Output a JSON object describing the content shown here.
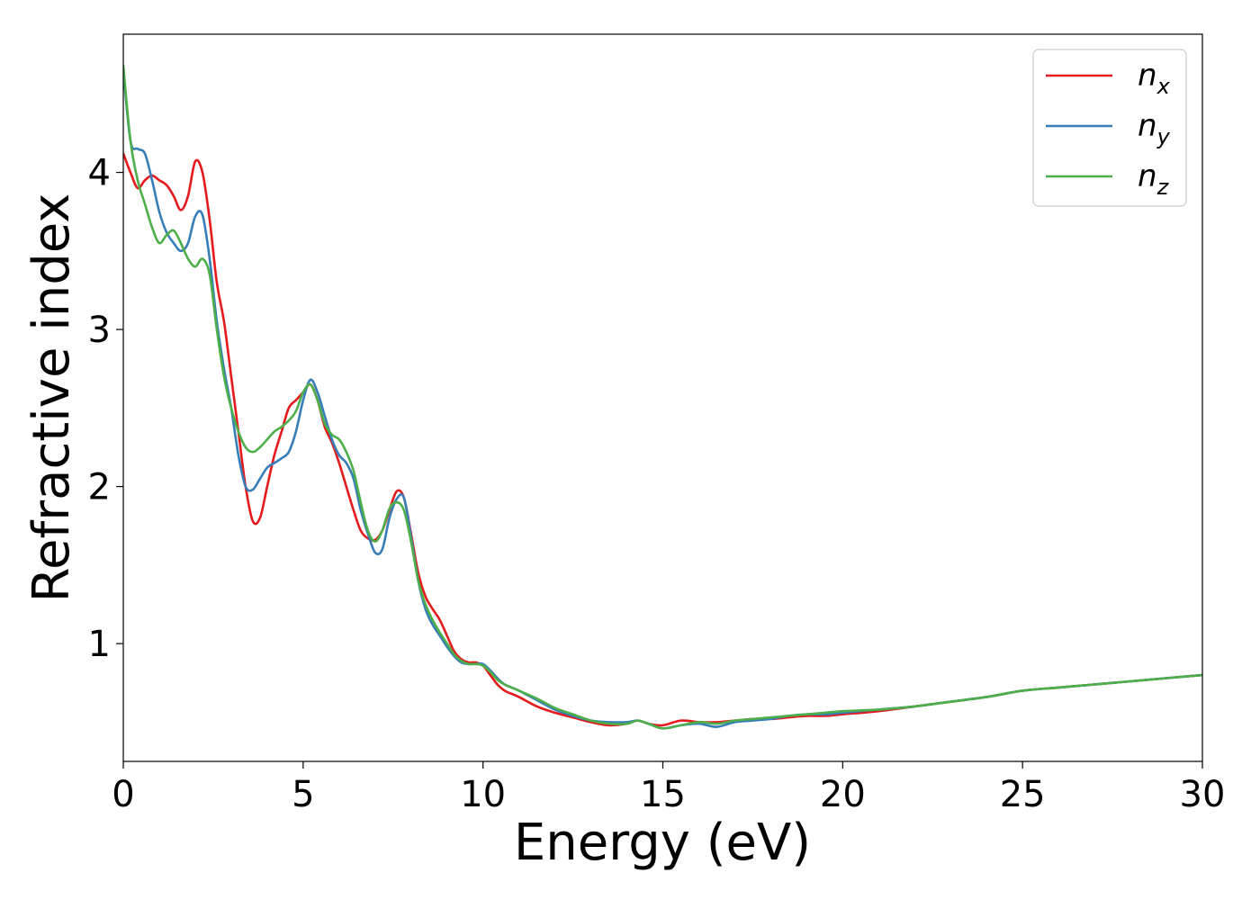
{
  "chart_data": {
    "type": "line",
    "xlabel": "Energy (eV)",
    "ylabel": "Refractive index",
    "xlim": [
      0,
      30
    ],
    "ylim": [
      0.25,
      4.88
    ],
    "xticks": [
      0,
      5,
      10,
      15,
      20,
      25,
      30
    ],
    "xtick_labels": [
      "0",
      "5",
      "10",
      "15",
      "20",
      "25",
      "30"
    ],
    "yticks": [
      1,
      2,
      3,
      4
    ],
    "ytick_labels": [
      "1",
      "2",
      "3",
      "4"
    ],
    "grid": false,
    "legend_position": "top-right",
    "series": [
      {
        "name": "n_x",
        "legend_base": "n",
        "legend_sub": "x",
        "color": "#e41a1c",
        "x": [
          0,
          0.2,
          0.4,
          0.6,
          0.8,
          1.0,
          1.2,
          1.4,
          1.6,
          1.8,
          2.0,
          2.2,
          2.4,
          2.6,
          2.8,
          3.0,
          3.2,
          3.4,
          3.6,
          3.8,
          4.0,
          4.2,
          4.4,
          4.6,
          4.8,
          5.0,
          5.2,
          5.4,
          5.6,
          5.8,
          6.0,
          6.2,
          6.4,
          6.6,
          6.8,
          7.0,
          7.2,
          7.4,
          7.6,
          7.8,
          8.0,
          8.2,
          8.4,
          8.6,
          8.8,
          9.0,
          9.2,
          9.4,
          9.6,
          9.8,
          10.0,
          10.2,
          10.4,
          10.6,
          10.8,
          11.0,
          11.5,
          12.0,
          12.5,
          13.0,
          13.5,
          14.0,
          14.3,
          14.6,
          15.0,
          15.5,
          16.0,
          16.5,
          17.0,
          17.5,
          18.0,
          18.5,
          19.0,
          19.5,
          20.0,
          21.0,
          22.0,
          23.0,
          24.0,
          25.0,
          26.0,
          27.0,
          28.0,
          29.0,
          30.0
        ],
        "y": [
          4.12,
          4.0,
          3.9,
          3.95,
          3.98,
          3.95,
          3.92,
          3.85,
          3.76,
          3.85,
          4.07,
          4.0,
          3.7,
          3.3,
          3.05,
          2.7,
          2.35,
          2.0,
          1.78,
          1.8,
          2.0,
          2.2,
          2.35,
          2.5,
          2.55,
          2.6,
          2.65,
          2.55,
          2.38,
          2.28,
          2.15,
          2.0,
          1.85,
          1.72,
          1.67,
          1.66,
          1.72,
          1.85,
          1.97,
          1.93,
          1.7,
          1.45,
          1.3,
          1.22,
          1.15,
          1.05,
          0.95,
          0.9,
          0.88,
          0.88,
          0.86,
          0.8,
          0.74,
          0.7,
          0.68,
          0.66,
          0.6,
          0.56,
          0.53,
          0.5,
          0.48,
          0.49,
          0.51,
          0.49,
          0.48,
          0.51,
          0.5,
          0.5,
          0.51,
          0.52,
          0.52,
          0.53,
          0.54,
          0.54,
          0.55,
          0.57,
          0.6,
          0.63,
          0.66,
          0.7,
          0.72,
          0.74,
          0.76,
          0.78,
          0.8
        ]
      },
      {
        "name": "n_y",
        "legend_base": "n",
        "legend_sub": "y",
        "color": "#377eb8",
        "x": [
          0,
          0.2,
          0.4,
          0.6,
          0.8,
          1.0,
          1.2,
          1.4,
          1.6,
          1.8,
          2.0,
          2.2,
          2.4,
          2.6,
          2.8,
          3.0,
          3.2,
          3.4,
          3.6,
          3.8,
          4.0,
          4.2,
          4.4,
          4.6,
          4.8,
          5.0,
          5.2,
          5.4,
          5.6,
          5.8,
          6.0,
          6.2,
          6.4,
          6.6,
          6.8,
          7.0,
          7.2,
          7.4,
          7.6,
          7.8,
          8.0,
          8.2,
          8.4,
          8.6,
          8.8,
          9.0,
          9.2,
          9.4,
          9.6,
          9.8,
          10.0,
          10.2,
          10.4,
          10.6,
          10.8,
          11.0,
          11.5,
          12.0,
          12.5,
          13.0,
          13.5,
          14.0,
          14.3,
          14.6,
          15.0,
          15.5,
          16.0,
          16.5,
          17.0,
          17.5,
          18.0,
          18.5,
          19.0,
          19.5,
          20.0,
          21.0,
          22.0,
          23.0,
          24.0,
          25.0,
          26.0,
          27.0,
          28.0,
          29.0,
          30.0
        ],
        "y": [
          4.65,
          4.2,
          4.15,
          4.12,
          3.95,
          3.75,
          3.62,
          3.55,
          3.5,
          3.55,
          3.72,
          3.73,
          3.45,
          3.05,
          2.75,
          2.5,
          2.2,
          2.0,
          1.98,
          2.05,
          2.12,
          2.15,
          2.18,
          2.22,
          2.35,
          2.55,
          2.68,
          2.6,
          2.45,
          2.3,
          2.2,
          2.15,
          2.05,
          1.85,
          1.7,
          1.58,
          1.6,
          1.8,
          1.92,
          1.93,
          1.68,
          1.4,
          1.22,
          1.12,
          1.05,
          0.98,
          0.92,
          0.88,
          0.87,
          0.87,
          0.87,
          0.83,
          0.78,
          0.74,
          0.72,
          0.7,
          0.64,
          0.58,
          0.54,
          0.51,
          0.5,
          0.5,
          0.51,
          0.49,
          0.46,
          0.48,
          0.49,
          0.47,
          0.5,
          0.51,
          0.52,
          0.54,
          0.55,
          0.55,
          0.56,
          0.58,
          0.6,
          0.63,
          0.66,
          0.7,
          0.72,
          0.74,
          0.76,
          0.78,
          0.8
        ]
      },
      {
        "name": "n_z",
        "legend_base": "n",
        "legend_sub": "z",
        "color": "#4daf4a",
        "x": [
          0,
          0.2,
          0.4,
          0.6,
          0.8,
          1.0,
          1.2,
          1.4,
          1.6,
          1.8,
          2.0,
          2.2,
          2.4,
          2.6,
          2.8,
          3.0,
          3.2,
          3.4,
          3.6,
          3.8,
          4.0,
          4.2,
          4.4,
          4.6,
          4.8,
          5.0,
          5.2,
          5.4,
          5.6,
          5.8,
          6.0,
          6.2,
          6.4,
          6.6,
          6.8,
          7.0,
          7.2,
          7.4,
          7.6,
          7.8,
          8.0,
          8.2,
          8.4,
          8.6,
          8.8,
          9.0,
          9.2,
          9.4,
          9.6,
          9.8,
          10.0,
          10.2,
          10.4,
          10.6,
          10.8,
          11.0,
          11.5,
          12.0,
          12.5,
          13.0,
          13.5,
          14.0,
          14.3,
          14.6,
          15.0,
          15.5,
          16.0,
          16.5,
          17.0,
          17.5,
          18.0,
          18.5,
          19.0,
          19.5,
          20.0,
          21.0,
          22.0,
          23.0,
          24.0,
          25.0,
          26.0,
          27.0,
          28.0,
          29.0,
          30.0
        ],
        "y": [
          4.68,
          4.2,
          3.95,
          3.8,
          3.65,
          3.55,
          3.6,
          3.63,
          3.55,
          3.45,
          3.4,
          3.45,
          3.35,
          3.0,
          2.7,
          2.5,
          2.35,
          2.25,
          2.22,
          2.25,
          2.3,
          2.35,
          2.38,
          2.42,
          2.48,
          2.6,
          2.65,
          2.55,
          2.4,
          2.33,
          2.3,
          2.22,
          2.1,
          1.9,
          1.72,
          1.65,
          1.72,
          1.86,
          1.9,
          1.85,
          1.65,
          1.4,
          1.25,
          1.15,
          1.07,
          1.0,
          0.93,
          0.89,
          0.87,
          0.87,
          0.86,
          0.82,
          0.77,
          0.74,
          0.72,
          0.7,
          0.65,
          0.59,
          0.55,
          0.51,
          0.49,
          0.49,
          0.51,
          0.49,
          0.46,
          0.48,
          0.5,
          0.49,
          0.51,
          0.52,
          0.53,
          0.54,
          0.55,
          0.56,
          0.57,
          0.58,
          0.6,
          0.63,
          0.66,
          0.7,
          0.72,
          0.74,
          0.76,
          0.78,
          0.8
        ]
      }
    ]
  }
}
